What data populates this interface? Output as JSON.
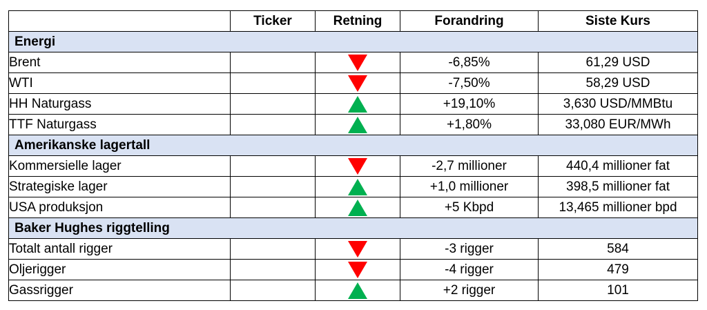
{
  "header": {
    "name": "",
    "ticker": "Ticker",
    "direction": "Retning",
    "change": "Forandring",
    "price": "Siste Kurs"
  },
  "colors": {
    "up": "#00b050",
    "down": "#ff0000",
    "section_bg": "#d9e2f3"
  },
  "sections": [
    {
      "title": "Energi",
      "rows": [
        {
          "name": "Brent",
          "ticker": "",
          "direction": "down",
          "change": "-6,85%",
          "price": "61,29 USD"
        },
        {
          "name": "WTI",
          "ticker": "",
          "direction": "down",
          "change": "-7,50%",
          "price": "58,29 USD"
        },
        {
          "name": "HH Naturgass",
          "ticker": "",
          "direction": "up",
          "change": "+19,10%",
          "price": "3,630 USD/MMBtu"
        },
        {
          "name": "TTF Naturgass",
          "ticker": "",
          "direction": "up",
          "change": "+1,80%",
          "price": "33,080 EUR/MWh"
        }
      ]
    },
    {
      "title": "Amerikanske lagertall",
      "rows": [
        {
          "name": "Kommersielle lager",
          "ticker": "",
          "direction": "down",
          "change": "-2,7 millioner",
          "price": "440,4 millioner fat"
        },
        {
          "name": "Strategiske lager",
          "ticker": "",
          "direction": "up",
          "change": "+1,0 millioner",
          "price": "398,5 millioner fat"
        },
        {
          "name": "USA produksjon",
          "ticker": "",
          "direction": "up",
          "change": "+5 Kbpd",
          "price": "13,465 millioner bpd"
        }
      ]
    },
    {
      "title": "Baker Hughes riggtelling",
      "rows": [
        {
          "name": "Totalt antall rigger",
          "ticker": "",
          "direction": "down",
          "change": "-3 rigger",
          "price": "584"
        },
        {
          "name": "Oljerigger",
          "ticker": "",
          "direction": "down",
          "change": "-4 rigger",
          "price": "479"
        },
        {
          "name": "Gassrigger",
          "ticker": "",
          "direction": "up",
          "change": "+2 rigger",
          "price": "101"
        }
      ]
    }
  ]
}
